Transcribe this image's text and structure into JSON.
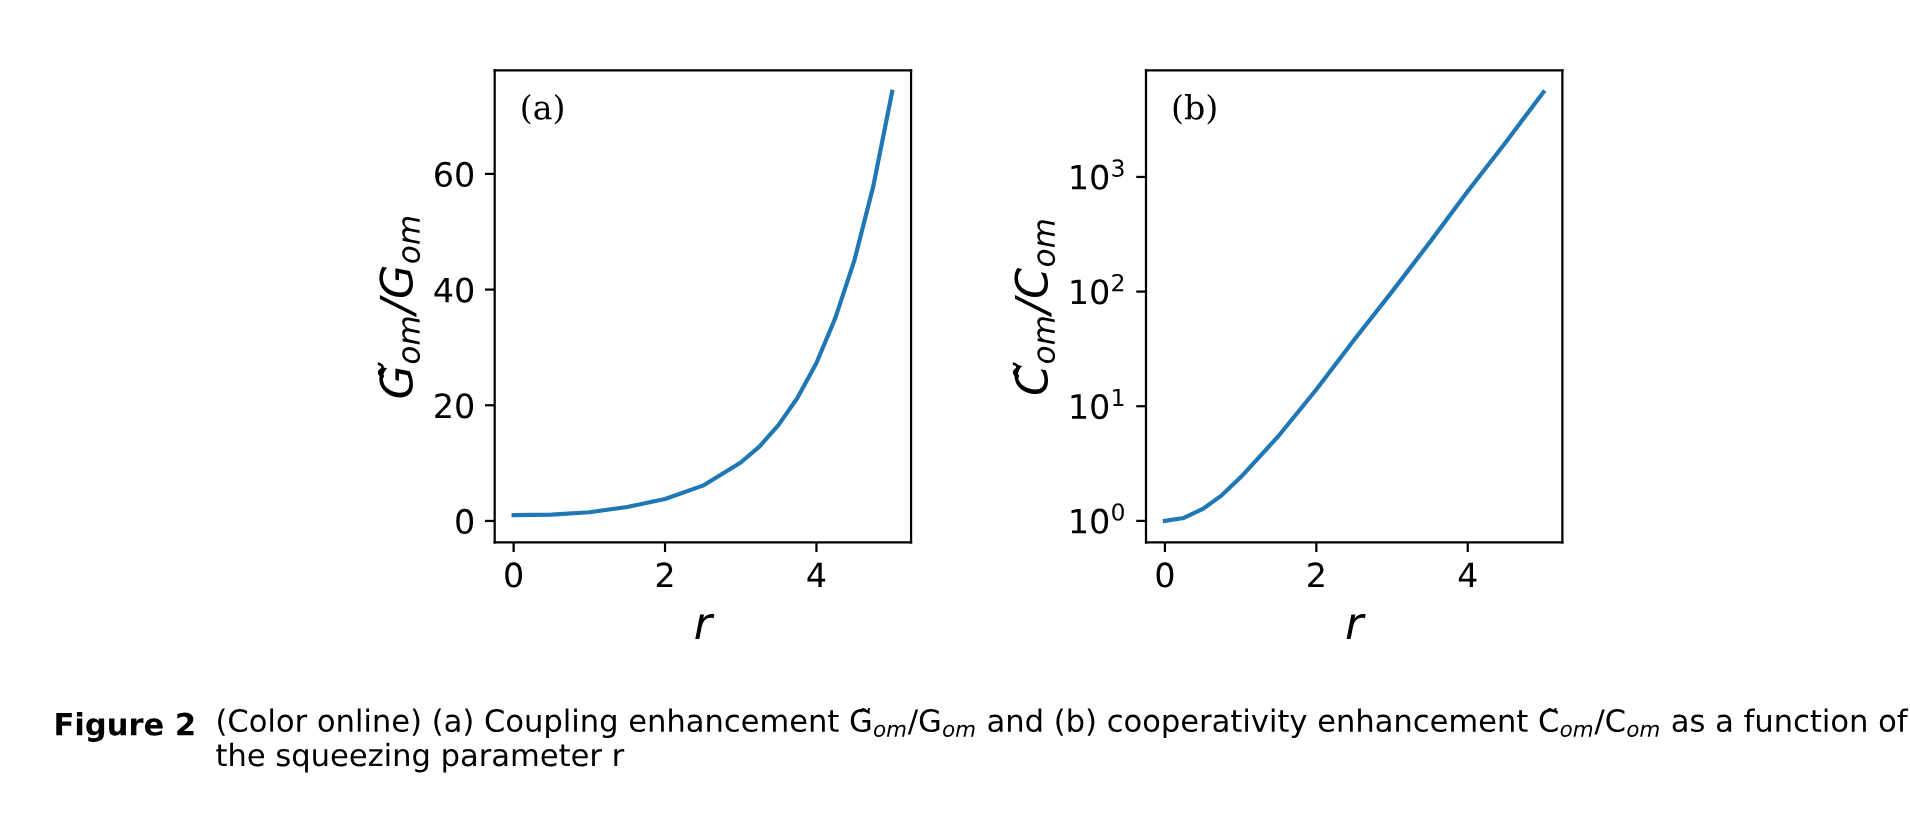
{
  "chart_data": [
    {
      "type": "line",
      "xlabel": "r",
      "ylabel": "G̃$_{om}$/G$_{om}$",
      "x": [
        0,
        0.5,
        1,
        1.5,
        2,
        2.5,
        3,
        3.25,
        3.5,
        3.75,
        4,
        4.25,
        4.5,
        4.75,
        5
      ],
      "series": [
        {
          "color": "#1f77b4",
          "values": [
            1,
            1.1,
            1.5,
            2.4,
            3.8,
            6.1,
            10.1,
            12.9,
            16.6,
            21.3,
            27.3,
            35.1,
            45,
            57.8,
            74.2
          ]
        }
      ],
      "xlim": [
        -0.25,
        5.25
      ],
      "xticks": [
        0,
        2,
        4
      ],
      "ylim": [
        -3.7,
        77.9
      ],
      "yticks": [
        0,
        20,
        40,
        60
      ],
      "grid": false,
      "annotations": [
        "(a)"
      ]
    },
    {
      "type": "line",
      "xlabel": "r",
      "ylabel": "C̃$_{om}$/C$_{om}$",
      "log": "y",
      "x": [
        0,
        0.25,
        0.5,
        0.75,
        1,
        1.5,
        2,
        2.5,
        3,
        3.5,
        4,
        4.5,
        5
      ],
      "series": [
        {
          "color": "#1f77b4",
          "values": [
            1,
            1.06,
            1.27,
            1.67,
            2.4,
            5.5,
            14,
            38,
            100,
            270,
            750,
            2000,
            5500
          ]
        }
      ],
      "xlim": [
        -0.25,
        5.25
      ],
      "xticks": [
        0,
        2,
        4
      ],
      "ylim": [
        0.65,
        8500
      ],
      "yticks": [
        {
          "value": 1,
          "label": "10$^{0}$"
        },
        {
          "value": 10,
          "label": "10$^{1}$"
        },
        {
          "value": 100,
          "label": "10$^{2}$"
        },
        {
          "value": 1000,
          "label": "10$^{3}$"
        }
      ],
      "grid": false,
      "annotations": [
        "(b)",
        "Figure 2",
        "(Color online) (a) Coupling enhancement G̃$_{om}$/G$_{om}$ and (b) cooperativity enhancement C̃$_{om}$/C$_{om}$ as a function of the squeezing parameter r"
      ]
    }
  ]
}
